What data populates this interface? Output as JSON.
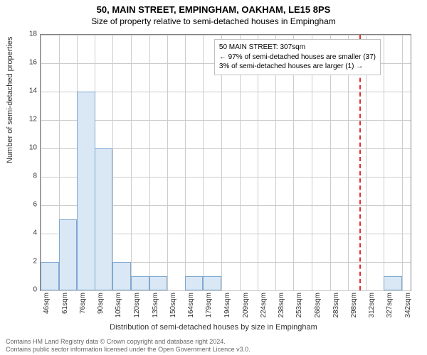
{
  "title_main": "50, MAIN STREET, EMPINGHAM, OAKHAM, LE15 8PS",
  "title_sub": "Size of property relative to semi-detached houses in Empingham",
  "y_label": "Number of semi-detached properties",
  "x_label": "Distribution of semi-detached houses by size in Empingham",
  "credits_line1": "Contains HM Land Registry data © Crown copyright and database right 2024.",
  "credits_line2": "Contains public sector information licensed under the Open Government Licence v3.0.",
  "chart": {
    "type": "histogram",
    "background_color": "#ffffff",
    "grid_color": "#cccccc",
    "border_color": "#808080",
    "bar_fill": "#dae8f5",
    "bar_border": "#7fa8d1",
    "ref_line_color": "#e03030",
    "title_fontsize": 13,
    "subtitle_fontsize": 12,
    "label_fontsize": 11,
    "tick_fontsize": 10,
    "ylim": [
      0,
      18
    ],
    "ytick_step": 2,
    "x_min": 46,
    "x_max": 349,
    "x_ticks": [
      46,
      61,
      76,
      90,
      105,
      120,
      135,
      150,
      164,
      179,
      194,
      209,
      224,
      238,
      253,
      268,
      283,
      298,
      312,
      327,
      342
    ],
    "x_tick_suffix": "sqm",
    "bin_width_sqm": 15,
    "bars": [
      {
        "start": 46,
        "value": 2
      },
      {
        "start": 61,
        "value": 5
      },
      {
        "start": 76,
        "value": 14
      },
      {
        "start": 90,
        "value": 10
      },
      {
        "start": 105,
        "value": 2
      },
      {
        "start": 120,
        "value": 1
      },
      {
        "start": 135,
        "value": 1
      },
      {
        "start": 150,
        "value": 0
      },
      {
        "start": 164,
        "value": 1
      },
      {
        "start": 179,
        "value": 1
      },
      {
        "start": 194,
        "value": 0
      },
      {
        "start": 209,
        "value": 0
      },
      {
        "start": 224,
        "value": 0
      },
      {
        "start": 238,
        "value": 0
      },
      {
        "start": 253,
        "value": 0
      },
      {
        "start": 268,
        "value": 0
      },
      {
        "start": 283,
        "value": 0
      },
      {
        "start": 298,
        "value": 0
      },
      {
        "start": 312,
        "value": 0
      },
      {
        "start": 327,
        "value": 1
      },
      {
        "start": 342,
        "value": 0
      }
    ],
    "reference_value": 307,
    "legend": {
      "line1": "50 MAIN STREET: 307sqm",
      "line2": "← 97% of semi-detached houses are smaller (37)",
      "line3": "3% of semi-detached houses are larger (1) →"
    }
  }
}
